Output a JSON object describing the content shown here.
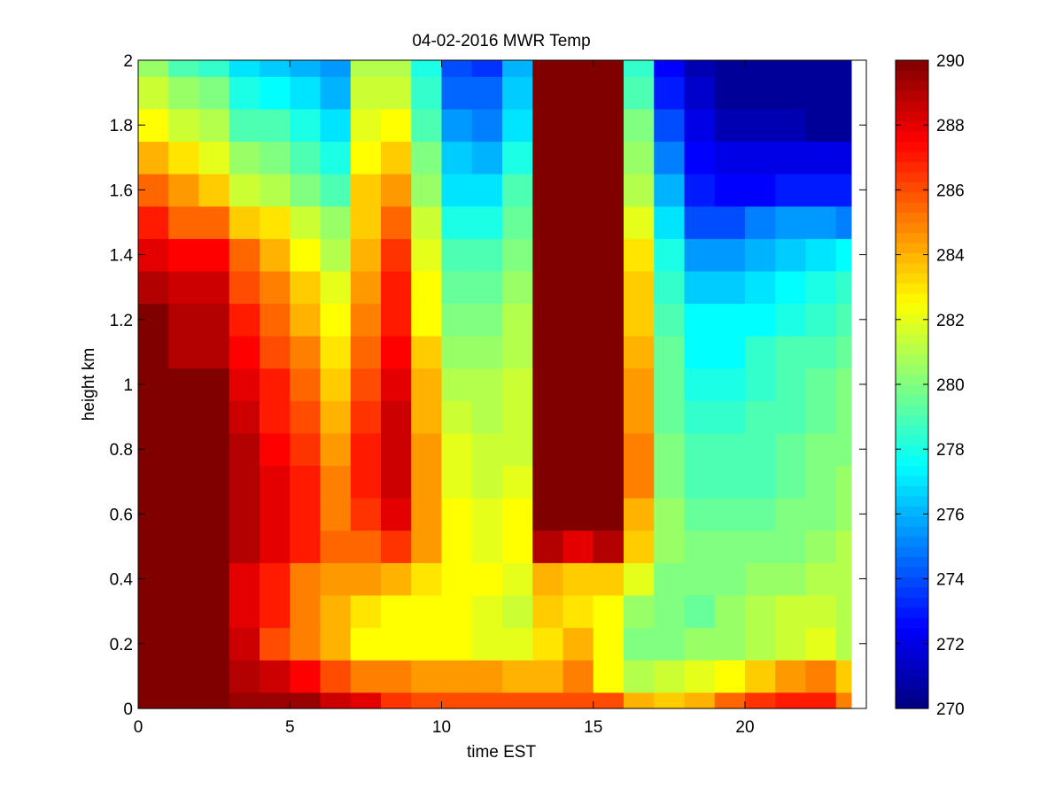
{
  "chart_data": {
    "type": "heatmap",
    "title": "04-02-2016 MWR Temp",
    "xlabel": "time EST",
    "ylabel": "height km",
    "xlim": [
      0,
      24
    ],
    "ylim": [
      0,
      2
    ],
    "xticks": [
      0,
      5,
      10,
      15,
      20
    ],
    "yticks": [
      0,
      0.2,
      0.4,
      0.6,
      0.8,
      1,
      1.2,
      1.4,
      1.6,
      1.8,
      2
    ],
    "x_edges": [
      0,
      1,
      2,
      3,
      4,
      5,
      6,
      7,
      8,
      9,
      10,
      11,
      12,
      13,
      14,
      15,
      16,
      17,
      18,
      19,
      20,
      21,
      22,
      23,
      23.5
    ],
    "y_edges": [
      0,
      0.05,
      0.15,
      0.25,
      0.35,
      0.45,
      0.55,
      0.65,
      0.75,
      0.85,
      0.95,
      1.05,
      1.15,
      1.25,
      1.35,
      1.45,
      1.55,
      1.65,
      1.75,
      1.85,
      1.95,
      2.0
    ],
    "colorbar": {
      "min": 270,
      "max": 290,
      "ticks": [
        270,
        272,
        274,
        276,
        278,
        280,
        282,
        284,
        286,
        288,
        290
      ],
      "colormap": "jet"
    },
    "z": [
      [
        290,
        290,
        290,
        289.5,
        289.5,
        289.5,
        288.5,
        288,
        286.5,
        286,
        286,
        286,
        286,
        286,
        286,
        286,
        284,
        283.5,
        284,
        285.5,
        286.5,
        287,
        287,
        285
      ],
      [
        290,
        290,
        290,
        289,
        288.5,
        287.5,
        286,
        285,
        285,
        284.5,
        284.5,
        284.5,
        284,
        284,
        285,
        282.5,
        281,
        281.5,
        282,
        282.5,
        283.5,
        284.5,
        285,
        283.5
      ],
      [
        290,
        290,
        290,
        288.5,
        286,
        285,
        284,
        282.5,
        282.5,
        282.5,
        282.5,
        282,
        282,
        283,
        284,
        282.5,
        280,
        280,
        280.5,
        280.5,
        281,
        281.5,
        282,
        281
      ],
      [
        290,
        290,
        290,
        288,
        287,
        285,
        284,
        283,
        282.5,
        282.5,
        282.5,
        282,
        281.5,
        283.5,
        283,
        282.5,
        280.5,
        280,
        279.5,
        280.5,
        281,
        281.5,
        281.5,
        281
      ],
      [
        290,
        290,
        290,
        288,
        287,
        285,
        284.5,
        284.5,
        284,
        283,
        282.5,
        282.5,
        282,
        284,
        283.5,
        283.5,
        282,
        280,
        280,
        280,
        280.5,
        280.5,
        281,
        281
      ],
      [
        290,
        290,
        290,
        289,
        288,
        287,
        285.5,
        285.5,
        286.5,
        284.5,
        282.5,
        282,
        282.5,
        289,
        288,
        289,
        283.5,
        280.5,
        280,
        280,
        280,
        280,
        280.5,
        281
      ],
      [
        290,
        290,
        290,
        289,
        288,
        287,
        285,
        286.5,
        288,
        284.5,
        282.5,
        282,
        282.5,
        290,
        290,
        290,
        284,
        280.5,
        279.5,
        279.5,
        279.5,
        280,
        280,
        280.5
      ],
      [
        290,
        290,
        290,
        289,
        288,
        287,
        285,
        287,
        288.5,
        284.5,
        282,
        281.5,
        282,
        290,
        290,
        290,
        285,
        280,
        279,
        279,
        279,
        279.5,
        280,
        280.5
      ],
      [
        290,
        290,
        290,
        289,
        287.5,
        286.5,
        284.5,
        287,
        288.5,
        284.5,
        282,
        281.5,
        281.5,
        290,
        290,
        290,
        285,
        280,
        279,
        279,
        279,
        279.5,
        280,
        280
      ],
      [
        290,
        290,
        290,
        288.5,
        287,
        286,
        284,
        286.5,
        288.5,
        284,
        281.5,
        281,
        281.5,
        290,
        290,
        290,
        284.5,
        279.5,
        278.5,
        278.5,
        279,
        279,
        279.5,
        280
      ],
      [
        290,
        290,
        290,
        288,
        287,
        285.5,
        283.5,
        286,
        288,
        284,
        281,
        281,
        281.5,
        290,
        290,
        290,
        284.5,
        279.5,
        278,
        278,
        278.5,
        279,
        279.5,
        280
      ],
      [
        290,
        289,
        289,
        287.5,
        286,
        285,
        283,
        285.5,
        287.5,
        283.5,
        280.5,
        280.5,
        281,
        290,
        290,
        290,
        284,
        279.5,
        277.5,
        277.5,
        278.5,
        279,
        279,
        279.5
      ],
      [
        290,
        289,
        289,
        287,
        285.5,
        284,
        282.5,
        285,
        287,
        282.5,
        280,
        280,
        281,
        290,
        290,
        290,
        283.5,
        279,
        277.5,
        277.5,
        277.5,
        278,
        278.5,
        279
      ],
      [
        289,
        288.5,
        288.5,
        286,
        285,
        283.5,
        282,
        284.5,
        287,
        282.5,
        279.5,
        279.5,
        280.5,
        290,
        290,
        290,
        283.5,
        278.5,
        276.5,
        276.5,
        277,
        277.5,
        278,
        278.5
      ],
      [
        288,
        287.5,
        287.5,
        285.5,
        284,
        282.5,
        281,
        284,
        286.5,
        282,
        279,
        279,
        280,
        290,
        290,
        290,
        283,
        278,
        275.5,
        275.5,
        276,
        276.5,
        277,
        277.5
      ],
      [
        287,
        285.5,
        285.5,
        283.5,
        283,
        281.5,
        280.5,
        283.5,
        285.5,
        281.5,
        278,
        278,
        279.5,
        290,
        290,
        290,
        282,
        277,
        274,
        274,
        275,
        275.5,
        275.5,
        275
      ],
      [
        285.5,
        284.5,
        283.5,
        281.5,
        281,
        280,
        279,
        283.5,
        284.5,
        280.5,
        277,
        277,
        279,
        290,
        290,
        290,
        281,
        276,
        273,
        272.5,
        272.5,
        273,
        273,
        273
      ],
      [
        284,
        283,
        282,
        280.5,
        280,
        279,
        278,
        282.5,
        283.5,
        280,
        276.5,
        276,
        278,
        290,
        290,
        290,
        280.5,
        275,
        272.5,
        272,
        272,
        272,
        272,
        272
      ],
      [
        282.5,
        281.5,
        281,
        279,
        279,
        278,
        277,
        282,
        282.5,
        279,
        275.5,
        275,
        277,
        290,
        290,
        290,
        280,
        274,
        272,
        271,
        271,
        271,
        270.5,
        270.5
      ],
      [
        281.5,
        280.5,
        280,
        278,
        277.5,
        277,
        276,
        281.5,
        281.5,
        278.5,
        274.5,
        274.5,
        276.5,
        290,
        290,
        290,
        279,
        273,
        271.5,
        270.5,
        270.5,
        270.5,
        270.5,
        270.5
      ],
      [
        280.5,
        279,
        278.5,
        277,
        276.5,
        276,
        275.5,
        281,
        281,
        278,
        274,
        273.5,
        276,
        290,
        290,
        290,
        278.5,
        272.5,
        271,
        270.5,
        270.5,
        270.5,
        270.5,
        270.5
      ]
    ]
  }
}
